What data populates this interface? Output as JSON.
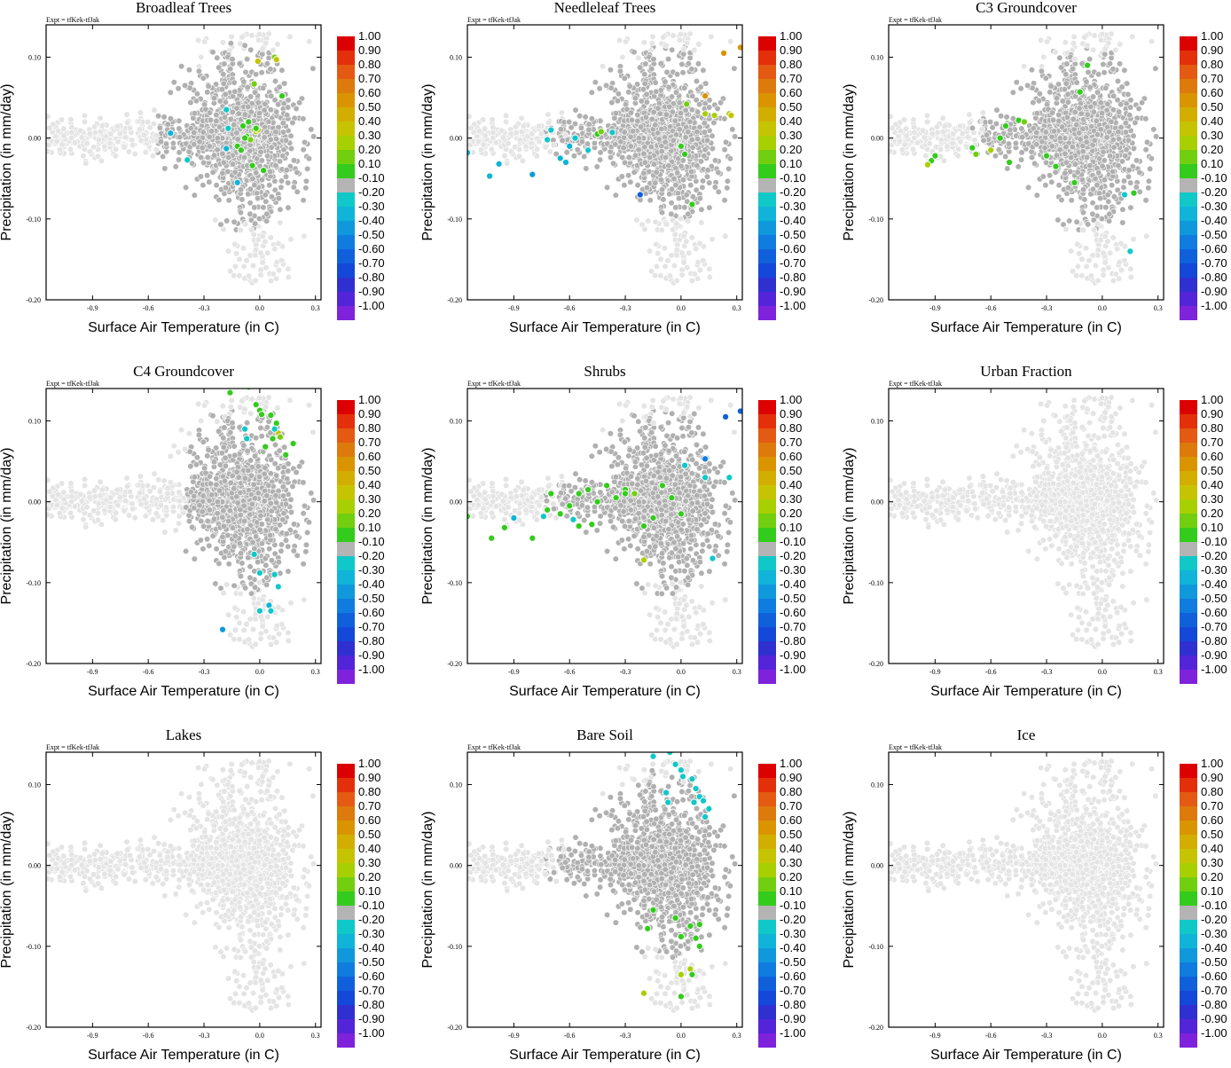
{
  "figure": {
    "expt_label": "Expt = tfKek-tfJak",
    "xlabel": "Surface Air Temperature (in C)",
    "ylabel": "Precipitation (in mm/day)",
    "x_ticks": [
      "-0.9",
      "-0.6",
      "-0.3",
      "0.0",
      "0.3"
    ],
    "y_ticks": [
      "0.10",
      "0.00",
      "-0.10",
      "-0.20"
    ],
    "colorbar": {
      "labels": [
        "1.00",
        "0.90",
        "0.80",
        "0.70",
        "0.60",
        "0.50",
        "0.40",
        "0.30",
        "0.20",
        "0.10",
        "-0.10",
        "-0.20",
        "-0.30",
        "-0.40",
        "-0.50",
        "-0.60",
        "-0.70",
        "-0.80",
        "-0.90",
        "-1.00"
      ],
      "colors": [
        "#dd0000",
        "#e3300a",
        "#e45a12",
        "#dd7a0c",
        "#d99400",
        "#d2ae00",
        "#c6c400",
        "#a8cf00",
        "#72cf10",
        "#33cc1c",
        "#b4b4b4",
        "#10c8c8",
        "#10b4d8",
        "#1098dc",
        "#107ce0",
        "#1060dc",
        "#1448d8",
        "#3030d0",
        "#5424d8",
        "#7e22dc"
      ]
    },
    "background_colors": {
      "not_significant": "#b0b0b0",
      "outside_mask": "#e4e4e4"
    }
  },
  "chart_data": [
    {
      "type": "scatter",
      "title": "Broadleaf Trees",
      "xlim": [
        -1.15,
        0.33
      ],
      "ylim": [
        -0.2,
        0.14
      ],
      "xlabel": "Surface Air Temperature (in C)",
      "ylabel": "Precipitation (in mm/day)",
      "gray_region": {
        "x": [
          -0.55,
          0.3
        ],
        "y": [
          -0.17,
          0.13
        ]
      },
      "points": [
        {
          "x": -0.01,
          "y": 0.095,
          "v": 0.4
        },
        {
          "x": 0.08,
          "y": 0.1,
          "v": 0.2
        },
        {
          "x": 0.09,
          "y": 0.097,
          "v": 0.4
        },
        {
          "x": 0.12,
          "y": 0.052,
          "v": 0.1
        },
        {
          "x": -0.03,
          "y": 0.067,
          "v": 0.2
        },
        {
          "x": -0.06,
          "y": 0.02,
          "v": 0.1
        },
        {
          "x": -0.09,
          "y": 0.015,
          "v": 0.1
        },
        {
          "x": -0.03,
          "y": 0.01,
          "v": 0.2
        },
        {
          "x": -0.07,
          "y": 0.002,
          "v": 0.1
        },
        {
          "x": -0.02,
          "y": 0.008,
          "v": 0.3
        },
        {
          "x": -0.01,
          "y": 0.01,
          "v": 0.4
        },
        {
          "x": -0.05,
          "y": -0.002,
          "v": 0.2
        },
        {
          "x": -0.12,
          "y": -0.01,
          "v": 0.1
        },
        {
          "x": -0.1,
          "y": -0.015,
          "v": 0.1
        },
        {
          "x": -0.18,
          "y": 0.035,
          "v": -0.2
        },
        {
          "x": -0.17,
          "y": 0.012,
          "v": -0.2
        },
        {
          "x": -0.18,
          "y": -0.013,
          "v": -0.3
        },
        {
          "x": -0.48,
          "y": 0.006,
          "v": -0.3
        },
        {
          "x": -0.39,
          "y": -0.027,
          "v": -0.2
        },
        {
          "x": -0.04,
          "y": -0.034,
          "v": 0.1
        },
        {
          "x": 0.02,
          "y": -0.04,
          "v": 0.1
        },
        {
          "x": -0.12,
          "y": -0.055,
          "v": -0.3
        },
        {
          "x": -0.02,
          "y": 0.012,
          "v": 0.1
        },
        {
          "x": -0.08,
          "y": 0.0,
          "v": 0.1
        }
      ]
    },
    {
      "type": "scatter",
      "title": "Needleleaf Trees",
      "xlim": [
        -1.15,
        0.33
      ],
      "ylim": [
        -0.2,
        0.14
      ],
      "xlabel": "Surface Air Temperature (in C)",
      "ylabel": "Precipitation (in mm/day)",
      "gray_region": {
        "x": [
          -1.1,
          0.3
        ],
        "y": [
          -0.1,
          0.13
        ]
      },
      "points": [
        {
          "x": 0.23,
          "y": 0.105,
          "v": 0.6
        },
        {
          "x": 0.32,
          "y": 0.112,
          "v": 0.6
        },
        {
          "x": 0.13,
          "y": 0.052,
          "v": 0.6
        },
        {
          "x": 0.03,
          "y": 0.042,
          "v": 0.2
        },
        {
          "x": 0.13,
          "y": 0.03,
          "v": 0.3
        },
        {
          "x": 0.18,
          "y": 0.028,
          "v": 0.3
        },
        {
          "x": 0.26,
          "y": 0.03,
          "v": 0.3
        },
        {
          "x": 0.27,
          "y": 0.028,
          "v": 0.4
        },
        {
          "x": 0.35,
          "y": 0.03,
          "v": 0.3
        },
        {
          "x": 0.0,
          "y": -0.01,
          "v": 0.1
        },
        {
          "x": 0.02,
          "y": -0.02,
          "v": 0.1
        },
        {
          "x": 0.06,
          "y": -0.082,
          "v": 0.1
        },
        {
          "x": -0.22,
          "y": -0.07,
          "v": -0.6
        },
        {
          "x": -0.45,
          "y": 0.005,
          "v": 0.1
        },
        {
          "x": -0.43,
          "y": 0.008,
          "v": 0.2
        },
        {
          "x": -0.37,
          "y": 0.007,
          "v": -0.2
        },
        {
          "x": -0.57,
          "y": 0.0,
          "v": -0.2
        },
        {
          "x": -0.6,
          "y": -0.01,
          "v": -0.3
        },
        {
          "x": -0.7,
          "y": 0.01,
          "v": -0.2
        },
        {
          "x": -0.72,
          "y": -0.002,
          "v": -0.2
        },
        {
          "x": -0.65,
          "y": -0.025,
          "v": -0.3
        },
        {
          "x": -0.62,
          "y": -0.03,
          "v": -0.3
        },
        {
          "x": -0.8,
          "y": -0.045,
          "v": -0.4
        },
        {
          "x": -0.98,
          "y": -0.032,
          "v": -0.3
        },
        {
          "x": -1.03,
          "y": -0.047,
          "v": -0.3
        },
        {
          "x": -1.15,
          "y": -0.018,
          "v": -0.3
        },
        {
          "x": -0.5,
          "y": -0.015,
          "v": -0.2
        }
      ]
    },
    {
      "type": "scatter",
      "title": "C3 Groundcover",
      "xlim": [
        -1.15,
        0.33
      ],
      "ylim": [
        -0.2,
        0.14
      ],
      "xlabel": "Surface Air Temperature (in C)",
      "ylabel": "Precipitation (in mm/day)",
      "gray_region": {
        "x": [
          -0.7,
          0.3
        ],
        "y": [
          -0.17,
          0.13
        ]
      },
      "points": [
        {
          "x": -0.08,
          "y": 0.09,
          "v": 0.1
        },
        {
          "x": -0.12,
          "y": 0.057,
          "v": 0.1
        },
        {
          "x": -0.45,
          "y": 0.022,
          "v": 0.1
        },
        {
          "x": -0.42,
          "y": 0.02,
          "v": 0.2
        },
        {
          "x": -0.52,
          "y": 0.015,
          "v": 0.1
        },
        {
          "x": -0.55,
          "y": 0.0,
          "v": 0.1
        },
        {
          "x": -0.6,
          "y": -0.015,
          "v": 0.3
        },
        {
          "x": -0.7,
          "y": -0.012,
          "v": 0.1
        },
        {
          "x": -0.68,
          "y": -0.02,
          "v": 0.2
        },
        {
          "x": -0.9,
          "y": -0.022,
          "v": 0.1
        },
        {
          "x": -0.92,
          "y": -0.028,
          "v": 0.1
        },
        {
          "x": -0.94,
          "y": -0.033,
          "v": 0.3
        },
        {
          "x": -0.5,
          "y": -0.03,
          "v": 0.1
        },
        {
          "x": -0.3,
          "y": -0.022,
          "v": 0.1
        },
        {
          "x": -0.25,
          "y": -0.035,
          "v": 0.1
        },
        {
          "x": -0.15,
          "y": -0.055,
          "v": 0.1
        },
        {
          "x": 0.17,
          "y": -0.068,
          "v": 0.1
        },
        {
          "x": 0.12,
          "y": -0.07,
          "v": -0.2
        },
        {
          "x": 0.15,
          "y": -0.14,
          "v": -0.2
        }
      ]
    },
    {
      "type": "scatter",
      "title": "C4 Groundcover",
      "xlim": [
        -1.15,
        0.33
      ],
      "ylim": [
        -0.2,
        0.14
      ],
      "xlabel": "Surface Air Temperature (in C)",
      "ylabel": "Precipitation (in mm/day)",
      "gray_region": {
        "x": [
          -0.4,
          0.3
        ],
        "y": [
          -0.17,
          0.13
        ]
      },
      "points": [
        {
          "x": -0.16,
          "y": 0.135,
          "v": 0.1
        },
        {
          "x": -0.06,
          "y": 0.142,
          "v": 0.1
        },
        {
          "x": -0.02,
          "y": 0.12,
          "v": 0.1
        },
        {
          "x": 0.0,
          "y": 0.113,
          "v": 0.1
        },
        {
          "x": 0.01,
          "y": 0.108,
          "v": 0.1
        },
        {
          "x": 0.06,
          "y": 0.107,
          "v": 0.1
        },
        {
          "x": 0.09,
          "y": 0.097,
          "v": 0.1
        },
        {
          "x": 0.1,
          "y": 0.085,
          "v": 0.4
        },
        {
          "x": 0.07,
          "y": 0.078,
          "v": 0.1
        },
        {
          "x": 0.11,
          "y": 0.08,
          "v": 0.2
        },
        {
          "x": 0.03,
          "y": 0.068,
          "v": 0.1
        },
        {
          "x": 0.18,
          "y": 0.072,
          "v": 0.1
        },
        {
          "x": 0.14,
          "y": 0.058,
          "v": 0.1
        },
        {
          "x": -0.08,
          "y": 0.09,
          "v": -0.2
        },
        {
          "x": -0.07,
          "y": 0.078,
          "v": -0.2
        },
        {
          "x": 0.08,
          "y": 0.09,
          "v": -0.2
        },
        {
          "x": -0.03,
          "y": -0.065,
          "v": -0.2
        },
        {
          "x": 0.0,
          "y": -0.088,
          "v": -0.2
        },
        {
          "x": 0.08,
          "y": -0.09,
          "v": -0.2
        },
        {
          "x": 0.1,
          "y": -0.105,
          "v": -0.2
        },
        {
          "x": 0.05,
          "y": -0.128,
          "v": -0.3
        },
        {
          "x": 0.0,
          "y": -0.135,
          "v": -0.2
        },
        {
          "x": 0.06,
          "y": -0.135,
          "v": -0.2
        },
        {
          "x": -0.2,
          "y": -0.158,
          "v": -0.4
        }
      ]
    },
    {
      "type": "scatter",
      "title": "Shrubs",
      "xlim": [
        -1.15,
        0.33
      ],
      "ylim": [
        -0.2,
        0.14
      ],
      "xlabel": "Surface Air Temperature (in C)",
      "ylabel": "Precipitation (in mm/day)",
      "gray_region": {
        "x": [
          -1.1,
          0.3
        ],
        "y": [
          -0.15,
          0.13
        ]
      },
      "points": [
        {
          "x": 0.24,
          "y": 0.105,
          "v": -0.6
        },
        {
          "x": 0.32,
          "y": 0.112,
          "v": -0.6
        },
        {
          "x": 0.13,
          "y": 0.053,
          "v": -0.5
        },
        {
          "x": 0.02,
          "y": 0.045,
          "v": -0.2
        },
        {
          "x": 0.13,
          "y": 0.03,
          "v": -0.2
        },
        {
          "x": 0.26,
          "y": 0.03,
          "v": -0.2
        },
        {
          "x": 0.35,
          "y": 0.03,
          "v": -0.2
        },
        {
          "x": 0.17,
          "y": -0.07,
          "v": -0.2
        },
        {
          "x": -0.2,
          "y": -0.072,
          "v": 0.3
        },
        {
          "x": -0.4,
          "y": 0.02,
          "v": 0.1
        },
        {
          "x": -0.3,
          "y": 0.015,
          "v": 0.1
        },
        {
          "x": -0.25,
          "y": 0.01,
          "v": 0.2
        },
        {
          "x": -0.35,
          "y": 0.005,
          "v": 0.1
        },
        {
          "x": -0.45,
          "y": 0.0,
          "v": 0.1
        },
        {
          "x": -0.5,
          "y": 0.015,
          "v": 0.1
        },
        {
          "x": -0.55,
          "y": 0.01,
          "v": 0.1
        },
        {
          "x": -0.6,
          "y": -0.005,
          "v": 0.1
        },
        {
          "x": -0.65,
          "y": -0.015,
          "v": 0.1
        },
        {
          "x": -0.7,
          "y": 0.01,
          "v": 0.1
        },
        {
          "x": -0.72,
          "y": -0.01,
          "v": 0.1
        },
        {
          "x": -0.1,
          "y": 0.02,
          "v": 0.1
        },
        {
          "x": -0.05,
          "y": 0.005,
          "v": 0.1
        },
        {
          "x": 0.0,
          "y": -0.015,
          "v": 0.1
        },
        {
          "x": -0.15,
          "y": -0.02,
          "v": 0.1
        },
        {
          "x": -0.2,
          "y": -0.03,
          "v": 0.1
        },
        {
          "x": -0.48,
          "y": -0.028,
          "v": 0.1
        },
        {
          "x": -0.55,
          "y": -0.03,
          "v": 0.1
        },
        {
          "x": -0.58,
          "y": -0.022,
          "v": -0.2
        },
        {
          "x": -0.8,
          "y": -0.045,
          "v": 0.1
        },
        {
          "x": -0.95,
          "y": -0.032,
          "v": 0.1
        },
        {
          "x": -1.02,
          "y": -0.045,
          "v": 0.1
        },
        {
          "x": -1.15,
          "y": -0.018,
          "v": 0.1
        },
        {
          "x": -0.9,
          "y": -0.02,
          "v": -0.3
        },
        {
          "x": -0.74,
          "y": -0.018,
          "v": -0.2
        },
        {
          "x": -0.3,
          "y": 0.01,
          "v": 0.1
        }
      ]
    },
    {
      "type": "scatter",
      "title": "Urban Fraction",
      "xlim": [
        -1.15,
        0.33
      ],
      "ylim": [
        -0.2,
        0.14
      ],
      "xlabel": "Surface Air Temperature (in C)",
      "ylabel": "Precipitation (in mm/day)",
      "gray_region": null,
      "points": []
    },
    {
      "type": "scatter",
      "title": "Lakes",
      "xlim": [
        -1.15,
        0.33
      ],
      "ylim": [
        -0.2,
        0.14
      ],
      "xlabel": "Surface Air Temperature (in C)",
      "ylabel": "Precipitation (in mm/day)",
      "gray_region": null,
      "points": []
    },
    {
      "type": "scatter",
      "title": "Bare Soil",
      "xlim": [
        -1.15,
        0.33
      ],
      "ylim": [
        -0.2,
        0.14
      ],
      "xlabel": "Surface Air Temperature (in C)",
      "ylabel": "Precipitation (in mm/day)",
      "gray_region": {
        "x": [
          -1.1,
          0.3
        ],
        "y": [
          -0.17,
          0.13
        ]
      },
      "points": [
        {
          "x": -0.15,
          "y": 0.135,
          "v": -0.2
        },
        {
          "x": -0.06,
          "y": 0.14,
          "v": -0.2
        },
        {
          "x": -0.03,
          "y": 0.125,
          "v": -0.2
        },
        {
          "x": 0.0,
          "y": 0.118,
          "v": -0.2
        },
        {
          "x": 0.01,
          "y": 0.11,
          "v": -0.2
        },
        {
          "x": 0.06,
          "y": 0.107,
          "v": -0.2
        },
        {
          "x": 0.08,
          "y": 0.095,
          "v": -0.2
        },
        {
          "x": 0.1,
          "y": 0.085,
          "v": -0.2
        },
        {
          "x": 0.07,
          "y": 0.078,
          "v": -0.2
        },
        {
          "x": 0.12,
          "y": 0.08,
          "v": -0.2
        },
        {
          "x": -0.08,
          "y": 0.09,
          "v": -0.2
        },
        {
          "x": -0.07,
          "y": 0.078,
          "v": -0.2
        },
        {
          "x": 0.15,
          "y": 0.07,
          "v": -0.2
        },
        {
          "x": 0.13,
          "y": 0.06,
          "v": -0.2
        },
        {
          "x": -0.03,
          "y": -0.065,
          "v": 0.1
        },
        {
          "x": 0.0,
          "y": -0.088,
          "v": 0.1
        },
        {
          "x": 0.08,
          "y": -0.09,
          "v": 0.1
        },
        {
          "x": 0.1,
          "y": -0.1,
          "v": 0.1
        },
        {
          "x": 0.05,
          "y": -0.128,
          "v": 0.3
        },
        {
          "x": 0.0,
          "y": -0.135,
          "v": 0.3
        },
        {
          "x": 0.06,
          "y": -0.135,
          "v": 0.1
        },
        {
          "x": -0.2,
          "y": -0.158,
          "v": 0.3
        },
        {
          "x": 0.0,
          "y": -0.162,
          "v": 0.1
        },
        {
          "x": -0.15,
          "y": -0.055,
          "v": 0.1
        },
        {
          "x": -0.18,
          "y": -0.078,
          "v": 0.1
        },
        {
          "x": 0.05,
          "y": -0.075,
          "v": 0.1
        },
        {
          "x": 0.1,
          "y": -0.073,
          "v": 0.1
        }
      ]
    },
    {
      "type": "scatter",
      "title": "Ice",
      "xlim": [
        -1.15,
        0.33
      ],
      "ylim": [
        -0.2,
        0.14
      ],
      "xlabel": "Surface Air Temperature (in C)",
      "ylabel": "Precipitation (in mm/day)",
      "gray_region": null,
      "points": []
    }
  ]
}
